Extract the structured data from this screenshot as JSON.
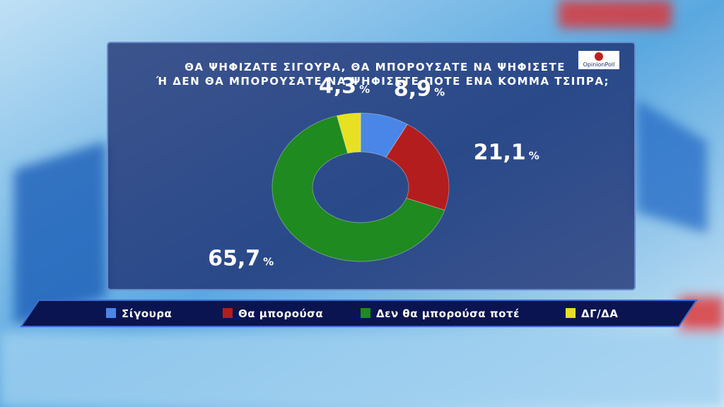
{
  "chart_data": {
    "type": "pie",
    "title_lines": [
      "ΘΑ ΨΗΦΙΖΑΤΕ ΣΙΓΟΥΡΑ, ΘΑ ΜΠΟΡΟΥΣΑΤΕ ΝΑ ΨΗΦΙΣΕΤΕ",
      "Ή ΔΕΝ ΘΑ ΜΠΟΡΟΥΣΑΤΕ ΝΑ ΨΗΦΙΣΕΤΕ ΠΟΤΕ ΕΝΑ ΚΟΜΜΑ ΤΣΙΠΡΑ;"
    ],
    "logo": "OpinionPoll",
    "categories": [
      "Σίγουρα",
      "Θα μπορούσα",
      "Δεν θα μπορούσα ποτέ",
      "ΔΓ/ΔΑ"
    ],
    "values": [
      8.9,
      21.1,
      65.7,
      4.3
    ],
    "value_labels": [
      "8,9",
      "21,1",
      "65,7",
      "4,3"
    ],
    "value_suffix": "%",
    "colors": [
      "#4a86e8",
      "#b31d1d",
      "#1f8a1f",
      "#e8e022"
    ],
    "donut": true
  }
}
